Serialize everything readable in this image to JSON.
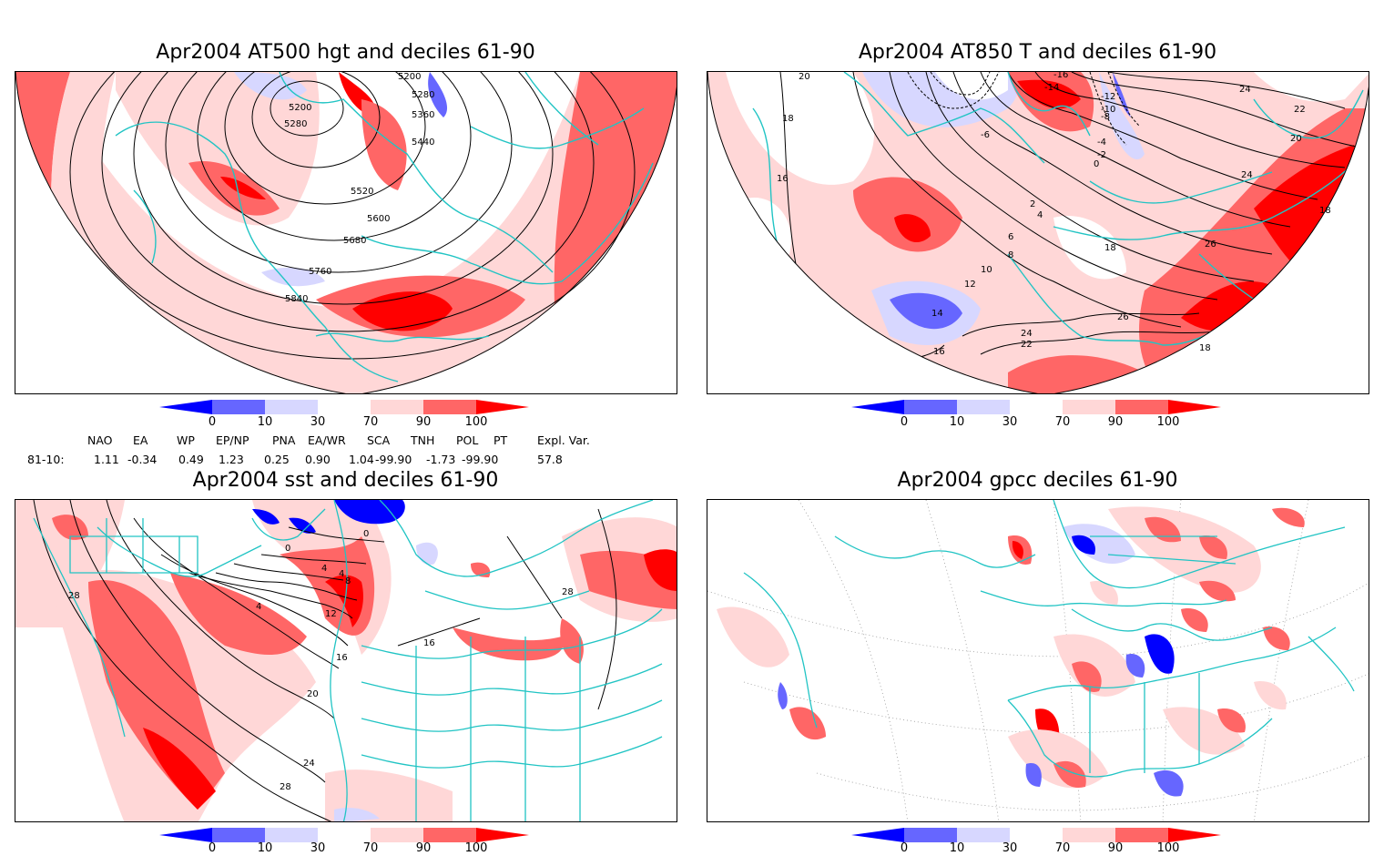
{
  "panels": [
    {
      "title": "Apr2004 AT500 hgt and deciles 61-90",
      "contour_labels": [
        "5200",
        "5200",
        "5280",
        "5280",
        "5360",
        "5440",
        "5520",
        "5600",
        "5680",
        "5760",
        "5840"
      ]
    },
    {
      "title": "Apr2004 AT850 T and deciles 61-90",
      "contour_labels": [
        "-16",
        "-14",
        "-12",
        "-10",
        "-8",
        "-6",
        "-4",
        "-2",
        "0",
        "2",
        "4",
        "6",
        "8",
        "10",
        "12",
        "14",
        "16",
        "16",
        "18",
        "18",
        "18",
        "20",
        "20",
        "22",
        "22",
        "24",
        "24",
        "24",
        "26",
        "26",
        "18"
      ]
    },
    {
      "title": "Apr2004 sst and deciles 61-90",
      "contour_labels": [
        "0",
        "0",
        "4",
        "4",
        "8",
        "12",
        "16",
        "16",
        "20",
        "24",
        "28",
        "28",
        "28",
        "4"
      ]
    },
    {
      "title": "Apr2004 gpcc deciles 61-90",
      "contour_labels": []
    }
  ],
  "colorbar": {
    "tick_labels": [
      "0",
      "10",
      "30",
      "70",
      "90",
      "100"
    ],
    "colors": [
      "#0000ff",
      "#6666ff",
      "#d7d7ff",
      "#ffffff",
      "#ffd7d7",
      "#ff6666",
      "#ff0000"
    ]
  },
  "indices": {
    "headers": [
      "NAO",
      "EA",
      "WP",
      "EP/NP",
      "PNA",
      "EA/WR",
      "SCA",
      "TNH",
      "POL",
      "PT",
      "Expl. Var."
    ],
    "row_label": "81-10:",
    "values": [
      "1.11",
      "-0.34",
      "0.49",
      "1.23",
      "0.25",
      "0.90",
      "1.04",
      "-99.90",
      "-1.73",
      "-99.90",
      "57.8"
    ]
  },
  "colors": {
    "coast": "#21c4c4",
    "contour": "#000000"
  }
}
